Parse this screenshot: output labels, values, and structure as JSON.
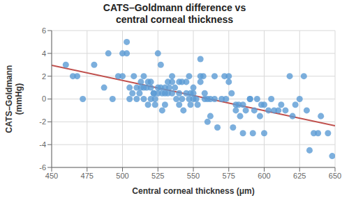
{
  "chart_data": {
    "type": "scatter",
    "title": "CATS–Goldmann difference vs\ncentral corneal thickness",
    "x_label": "Central corneal thickness (μm)",
    "y_label": "CATS–Goldmann\n(mmHg)",
    "xlim": [
      450,
      650
    ],
    "ylim": [
      -6,
      6
    ],
    "xticks": [
      450,
      475,
      500,
      525,
      550,
      575,
      600,
      625,
      650
    ],
    "yticks": [
      -6,
      -4,
      -2,
      0,
      2,
      4,
      6
    ],
    "grid": true,
    "series": [
      {
        "type": "scatter",
        "color": "#5b9bd5",
        "x": [
          460,
          465,
          468,
          472,
          480,
          487,
          490,
          493,
          497,
          500,
          500,
          503,
          503,
          505,
          505,
          507,
          508,
          510,
          510,
          512,
          513,
          513,
          515,
          515,
          515,
          517,
          518,
          518,
          520,
          520,
          520,
          522,
          522,
          523,
          523,
          525,
          525,
          525,
          527,
          527,
          528,
          528,
          530,
          530,
          530,
          532,
          532,
          533,
          535,
          535,
          535,
          537,
          538,
          540,
          540,
          540,
          542,
          542,
          543,
          545,
          545,
          547,
          547,
          548,
          548,
          550,
          550,
          550,
          552,
          553,
          555,
          555,
          555,
          557,
          558,
          558,
          560,
          560,
          562,
          562,
          565,
          565,
          567,
          570,
          572,
          573,
          575,
          575,
          577,
          578,
          580,
          580,
          582,
          583,
          585,
          585,
          587,
          590,
          590,
          592,
          593,
          595,
          597,
          598,
          600,
          600,
          603,
          605,
          607,
          610,
          612,
          615,
          618,
          620,
          622,
          625,
          628,
          630,
          632,
          635,
          638,
          640,
          645,
          648
        ],
        "values": [
          3.0,
          2.0,
          2.0,
          0.0,
          3.0,
          1.0,
          4.0,
          0.0,
          2.0,
          4.0,
          2.0,
          5.0,
          4.0,
          1.0,
          0.0,
          0.5,
          2.0,
          0.0,
          1.0,
          0.5,
          1.5,
          1.0,
          1.0,
          0.0,
          2.0,
          1.0,
          -0.5,
          1.5,
          1.0,
          1.5,
          0.0,
          0.5,
          0.5,
          -0.5,
          0.0,
          4.0,
          1.0,
          0.5,
          3.0,
          1.0,
          0.5,
          -1.0,
          1.0,
          0.5,
          -0.5,
          1.5,
          0.5,
          1.0,
          2.0,
          1.5,
          0.5,
          1.0,
          0.0,
          1.5,
          0.5,
          -0.5,
          1.5,
          0.0,
          -1.0,
          1.5,
          0.5,
          2.0,
          0.0,
          0.5,
          -0.5,
          1.0,
          0.5,
          0.0,
          0.0,
          -0.5,
          3.5,
          2.0,
          1.5,
          2.0,
          0.5,
          0.0,
          0.0,
          -2.0,
          0.0,
          -1.5,
          0.0,
          2.0,
          -2.5,
          0.0,
          2.0,
          0.0,
          2.0,
          1.5,
          0.5,
          -2.5,
          -0.5,
          -1.0,
          -0.5,
          -1.5,
          -3.0,
          -0.5,
          -1.0,
          0.0,
          0.0,
          -3.0,
          -1.0,
          0.0,
          -1.5,
          -0.5,
          -0.5,
          -3.0,
          -1.0,
          0.0,
          -1.0,
          -1.0,
          -0.5,
          -1.0,
          2.0,
          -1.5,
          -0.5,
          0.0,
          2.0,
          -1.0,
          -4.5,
          -3.0,
          -3.0,
          -1.5,
          -3.0,
          -5.0
        ]
      },
      {
        "type": "line",
        "color": "#c0504d",
        "x": [
          450,
          650
        ],
        "values": [
          2.95,
          -2.35
        ]
      }
    ]
  }
}
